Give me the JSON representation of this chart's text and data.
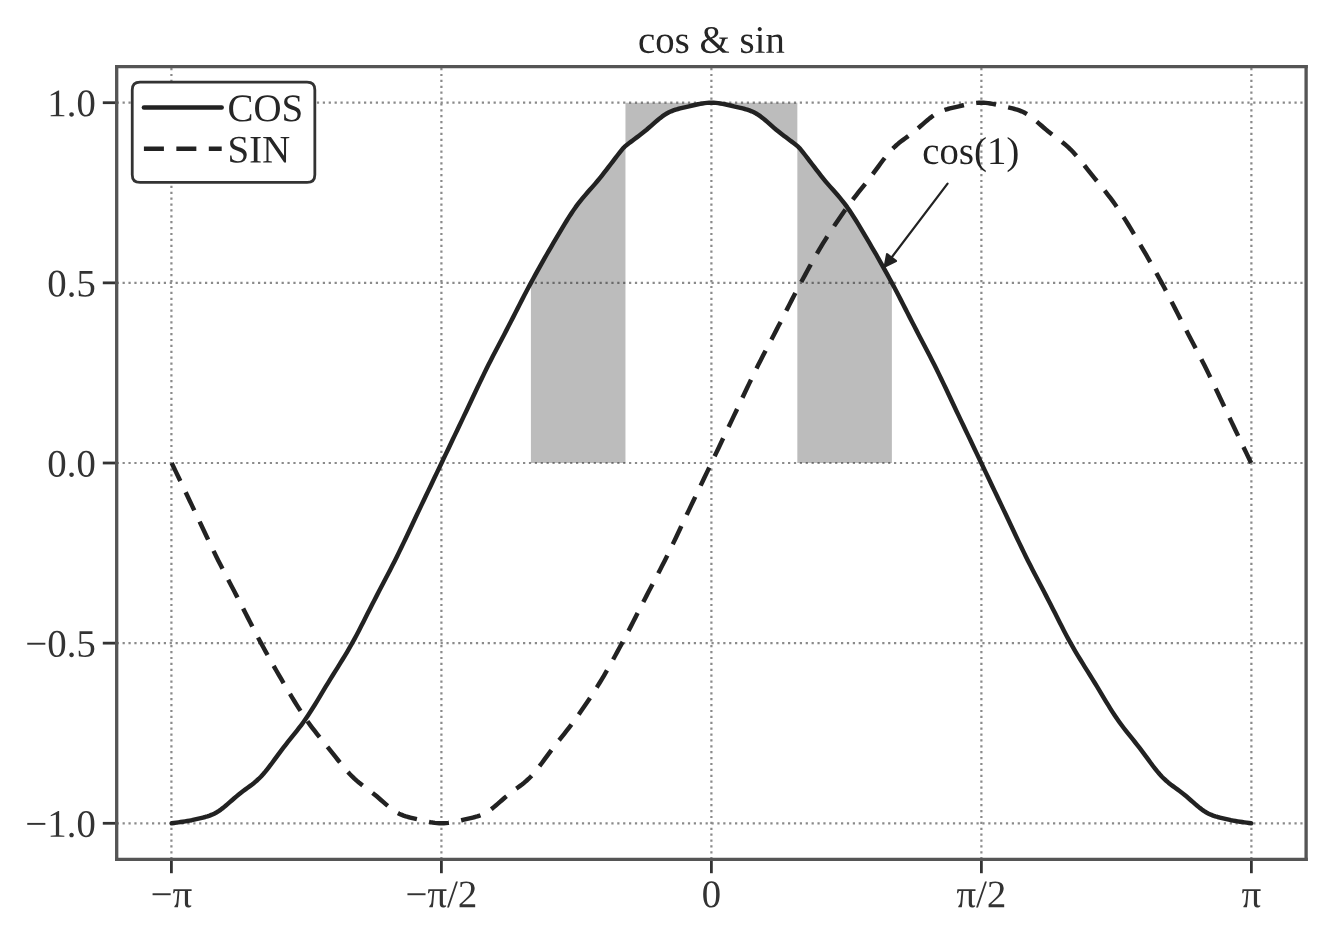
{
  "chart_data": {
    "type": "line",
    "title": "cos & sin",
    "x": [
      -3.14,
      -3.01,
      -2.88,
      -2.75,
      -2.62,
      -2.49,
      -2.36,
      -2.23,
      -2.09,
      -1.96,
      -1.83,
      -1.7,
      -1.57,
      -1.44,
      -1.31,
      -1.18,
      -1.05,
      -0.92,
      -0.79,
      -0.65,
      -0.52,
      -0.39,
      -0.26,
      -0.13,
      0,
      0.13,
      0.26,
      0.39,
      0.52,
      0.65,
      0.79,
      0.92,
      1.05,
      1.18,
      1.31,
      1.44,
      1.57,
      1.7,
      1.83,
      1.96,
      2.09,
      2.23,
      2.36,
      2.49,
      2.62,
      2.75,
      2.88,
      3.01,
      3.14
    ],
    "series": [
      {
        "name": "COS",
        "color": "#222222",
        "line_style": "solid",
        "x": [
          -3.14,
          -3.01,
          -2.88,
          -2.75,
          -2.62,
          -2.49,
          -2.36,
          -2.23,
          -2.09,
          -1.96,
          -1.83,
          -1.7,
          -1.57,
          -1.44,
          -1.31,
          -1.18,
          -1.05,
          -0.92,
          -0.79,
          -0.65,
          -0.52,
          -0.5,
          -0.5,
          -0.39,
          -0.26,
          -0.13,
          0,
          0.13,
          0.26,
          0.39,
          0.5,
          0.5,
          0.52,
          0.65,
          0.79,
          0.92,
          1.05,
          1.18,
          1.31,
          1.44,
          1.57,
          1.7,
          1.83,
          1.96,
          2.09,
          2.23,
          2.36,
          2.49,
          2.62,
          2.75,
          2.88,
          3.01,
          3.14
        ],
        "values": [
          -1,
          -0.99,
          -0.97,
          -0.92,
          -0.87,
          -0.79,
          -0.71,
          -0.61,
          -0.5,
          -0.38,
          -0.26,
          -0.13,
          0,
          0.13,
          0.26,
          0.38,
          0.5,
          0.61,
          0.71,
          0.79,
          0.87,
          0.88,
          0.88,
          0.92,
          0.97,
          0.99,
          1,
          0.99,
          0.97,
          0.92,
          0.88,
          0.88,
          0.87,
          0.79,
          0.71,
          0.61,
          0.5,
          0.38,
          0.26,
          0.13,
          0,
          -0.13,
          -0.26,
          -0.38,
          -0.5,
          -0.61,
          -0.71,
          -0.79,
          -0.87,
          -0.92,
          -0.97,
          -0.99,
          -1
        ],
        "lower": [
          null,
          null,
          null,
          null,
          null,
          null,
          null,
          null,
          null,
          null,
          null,
          null,
          null,
          null,
          null,
          null,
          0,
          0,
          0,
          0,
          0,
          0,
          0.88,
          0.92,
          0.97,
          0.99,
          1,
          0.99,
          0.97,
          0.92,
          0.88,
          0,
          0,
          0,
          0,
          0,
          0,
          null,
          null,
          null,
          null,
          null,
          null,
          null,
          null,
          null,
          null,
          null,
          null,
          null,
          null,
          null,
          null
        ],
        "upper": [
          null,
          null,
          null,
          null,
          null,
          null,
          null,
          null,
          null,
          null,
          null,
          null,
          null,
          null,
          null,
          null,
          0.5,
          0.61,
          0.71,
          0.79,
          0.87,
          0.88,
          1,
          1,
          1,
          1,
          1,
          1,
          1,
          1,
          1,
          0.88,
          0.87,
          0.79,
          0.71,
          0.61,
          0.5,
          null,
          null,
          null,
          null,
          null,
          null,
          null,
          null,
          null,
          null,
          null,
          null,
          null,
          null,
          null,
          null
        ]
      },
      {
        "name": "SIN",
        "color": "#222222",
        "line_style": "dashed",
        "values": [
          0,
          -0.13,
          -0.26,
          -0.38,
          -0.5,
          -0.61,
          -0.71,
          -0.79,
          -0.87,
          -0.92,
          -0.97,
          -0.99,
          -1,
          -0.99,
          -0.97,
          -0.92,
          -0.87,
          -0.79,
          -0.71,
          -0.61,
          -0.5,
          -0.38,
          -0.26,
          -0.13,
          0,
          0.13,
          0.26,
          0.38,
          0.5,
          0.61,
          0.71,
          0.79,
          0.87,
          0.92,
          0.97,
          0.99,
          1,
          0.99,
          0.97,
          0.92,
          0.87,
          0.79,
          0.71,
          0.61,
          0.5,
          0.38,
          0.26,
          0.13,
          0
        ]
      }
    ],
    "xlim": [
      -3.46,
      3.46
    ],
    "ylim": [
      -1.1,
      1.1
    ],
    "xticks": [
      {
        "value": -3.1416,
        "label": "−π"
      },
      {
        "value": -1.5708,
        "label": "−π/2"
      },
      {
        "value": 0,
        "label": "0"
      },
      {
        "value": 1.5708,
        "label": "π/2"
      },
      {
        "value": 3.1416,
        "label": "π"
      }
    ],
    "yticks": [
      {
        "value": -1.0,
        "label": "−1.0"
      },
      {
        "value": -0.5,
        "label": "−0.5"
      },
      {
        "value": 0.0,
        "label": "0.0"
      },
      {
        "value": 0.5,
        "label": "0.5"
      },
      {
        "value": 1.0,
        "label": "1.0"
      }
    ],
    "grid": true,
    "legend": "top left",
    "annotations": [
      {
        "text": "cos(1)",
        "x": 1,
        "y": 0.54
      }
    ]
  }
}
